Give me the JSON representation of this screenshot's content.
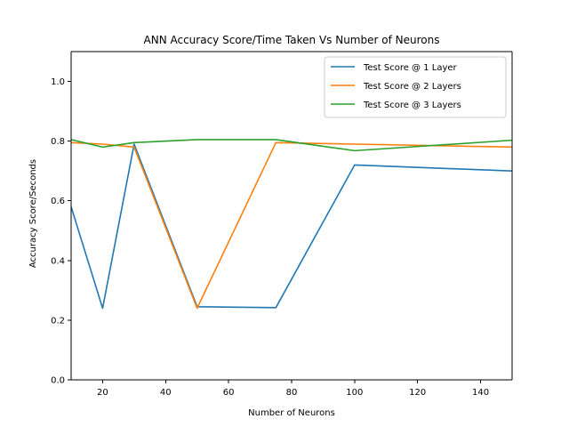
{
  "chart_data": {
    "type": "line",
    "title": "ANN Accuracy Score/Time Taken Vs Number of Neurons",
    "xlabel": "Number of Neurons",
    "ylabel": "Accuracy Score/Seconds",
    "xlim": [
      10,
      150
    ],
    "ylim": [
      0.0,
      1.1
    ],
    "xticks": [
      20,
      40,
      60,
      80,
      100,
      120,
      140
    ],
    "yticks": [
      0.0,
      0.2,
      0.4,
      0.6,
      0.8,
      1.0
    ],
    "xtick_labels": [
      "20",
      "40",
      "60",
      "80",
      "100",
      "120",
      "140"
    ],
    "ytick_labels": [
      "0.0",
      "0.2",
      "0.4",
      "0.6",
      "0.8",
      "1.0"
    ],
    "grid": false,
    "legend_position": "top-right",
    "x": [
      10,
      20,
      30,
      50,
      75,
      100,
      150
    ],
    "series": [
      {
        "name": "Test Score @ 1 Layer",
        "color": "#1f77b4",
        "values": [
          0.58,
          0.24,
          0.79,
          0.245,
          0.242,
          0.72,
          0.7
        ]
      },
      {
        "name": "Test Score @ 2 Layers",
        "color": "#ff7f0e",
        "values": [
          0.795,
          0.79,
          0.78,
          0.24,
          0.795,
          0.79,
          0.78
        ]
      },
      {
        "name": "Test Score @ 3 Layers",
        "color": "#2ca02c",
        "values": [
          0.805,
          0.78,
          0.795,
          0.805,
          0.805,
          0.768,
          0.803
        ]
      }
    ]
  }
}
